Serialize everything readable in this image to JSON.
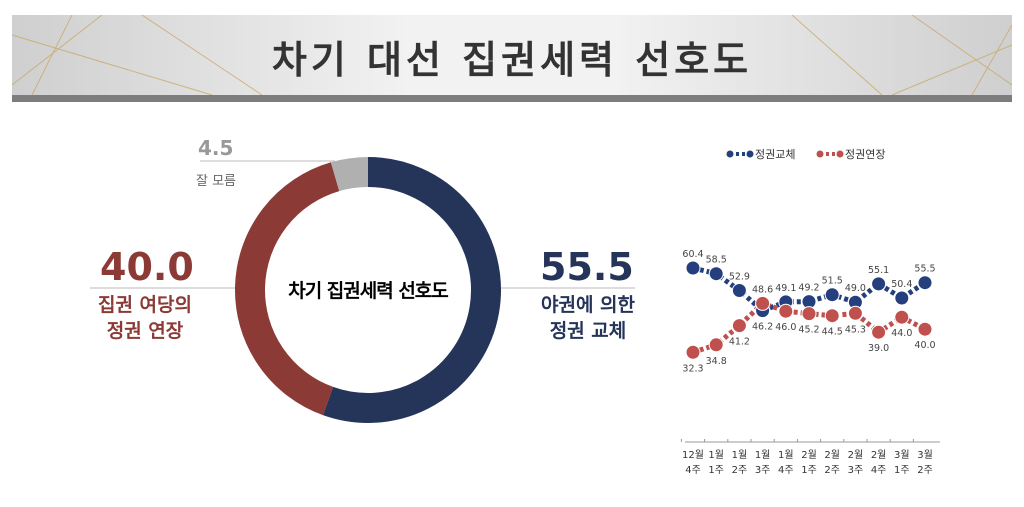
{
  "title": "차기 대선 집권세력 선호도",
  "donut": {
    "center_label": "차기 집권세력 선호도",
    "slices": [
      {
        "label_line1": "야권에 의한",
        "label_line2": "정권 교체",
        "value": 55.5,
        "value_text": "55.5",
        "color": "#253559"
      },
      {
        "label_line1": "집권 여당의",
        "label_line2": "정권 연장",
        "value": 40.0,
        "value_text": "40.0",
        "color": "#8b3a36"
      },
      {
        "label_line1": "잘 모름",
        "value": 4.5,
        "value_text": "4.5",
        "color": "#b0b0b0"
      }
    ]
  },
  "chart_data": {
    "type": "line",
    "categories": [
      [
        "12월",
        "4주"
      ],
      [
        "1월",
        "1주"
      ],
      [
        "1월",
        "2주"
      ],
      [
        "1월",
        "3주"
      ],
      [
        "1월",
        "4주"
      ],
      [
        "2월",
        "1주"
      ],
      [
        "2월",
        "2주"
      ],
      [
        "2월",
        "3주"
      ],
      [
        "2월",
        "4주"
      ],
      [
        "3월",
        "1주"
      ],
      [
        "3월",
        "2주"
      ]
    ],
    "series": [
      {
        "name": "정권교체",
        "color": "#253f7e",
        "values": [
          60.4,
          58.5,
          52.9,
          46.2,
          49.1,
          49.2,
          51.5,
          49.0,
          55.1,
          50.4,
          55.5
        ]
      },
      {
        "name": "정권연장",
        "color": "#c0504d",
        "values": [
          32.3,
          34.8,
          41.2,
          48.6,
          46.0,
          45.2,
          44.5,
          45.3,
          39.0,
          44.0,
          40.0
        ]
      }
    ],
    "legend": "top"
  }
}
